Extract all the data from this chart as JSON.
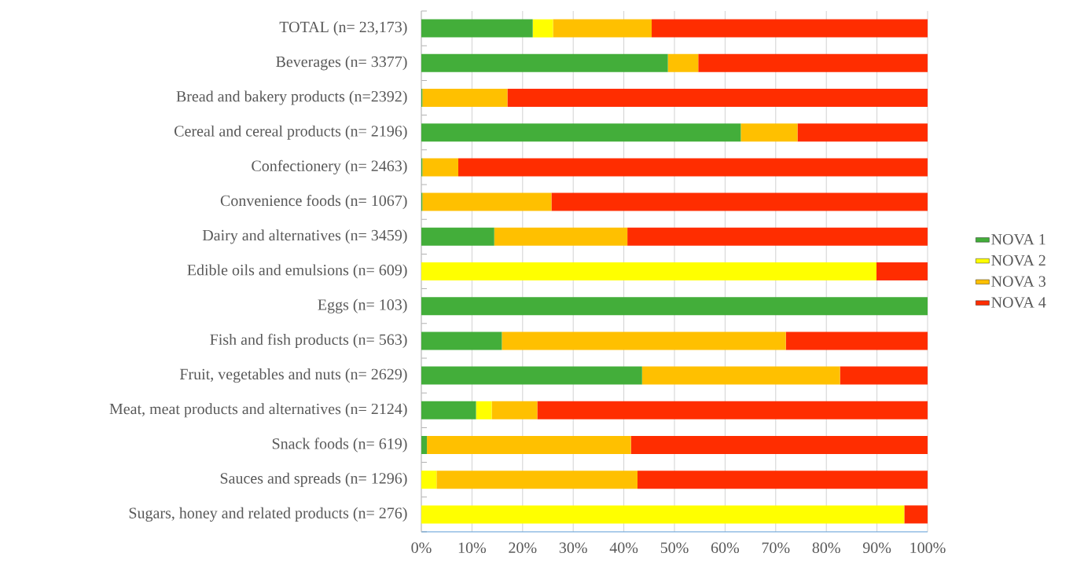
{
  "chart_data": {
    "type": "bar",
    "orientation": "horizontal",
    "stacked": true,
    "categories": [
      "TOTAL (n= 23,173)",
      "Beverages (n= 3377)",
      "Bread and bakery products (n=2392)",
      "Cereal and cereal products (n= 2196)",
      "Confectionery (n= 2463)",
      "Convenience foods (n= 1067)",
      "Dairy and alternatives (n= 3459)",
      "Edible oils and emulsions (n= 609)",
      "Eggs (n= 103)",
      "Fish and fish products (n= 563)",
      "Fruit, vegetables and nuts (n= 2629)",
      "Meat, meat products and alternatives (n= 2124)",
      "Snack foods (n= 619)",
      "Sauces and spreads (n= 1296)",
      "Sugars, honey and related products (n= 276)"
    ],
    "series": [
      {
        "name": "NOVA 1",
        "color": "#43ae3a",
        "values": [
          22.0,
          48.7,
          0.2,
          63.1,
          0.2,
          0.2,
          14.4,
          0,
          100,
          15.9,
          43.6,
          10.8,
          1.1,
          0,
          0
        ]
      },
      {
        "name": "NOVA 2",
        "color": "#ffff00",
        "values": [
          4.0,
          0,
          0,
          0,
          0,
          0,
          0,
          89.9,
          0,
          0,
          0,
          3.1,
          0,
          3.0,
          95.4
        ]
      },
      {
        "name": "NOVA 3",
        "color": "#ffc000",
        "values": [
          19.5,
          6.0,
          16.8,
          11.2,
          7.1,
          25.5,
          26.3,
          0,
          0,
          56.1,
          39.1,
          9.0,
          40.3,
          39.7,
          0
        ]
      },
      {
        "name": "NOVA 4",
        "color": "#ff2d00",
        "values": [
          54.5,
          45.3,
          83.0,
          25.7,
          92.7,
          74.3,
          59.3,
          10.1,
          0,
          28.0,
          17.3,
          77.1,
          58.6,
          57.3,
          4.6
        ]
      }
    ],
    "xlim": [
      0,
      100
    ],
    "xticks": [
      {
        "value": 0,
        "label": "0%"
      },
      {
        "value": 10,
        "label": "10%"
      },
      {
        "value": 20,
        "label": "20%"
      },
      {
        "value": 30,
        "label": "30%"
      },
      {
        "value": 40,
        "label": "40%"
      },
      {
        "value": 50,
        "label": "50%"
      },
      {
        "value": 60,
        "label": "60%"
      },
      {
        "value": 70,
        "label": "70%"
      },
      {
        "value": 80,
        "label": "80%"
      },
      {
        "value": 90,
        "label": "90%"
      },
      {
        "value": 100,
        "label": "100%"
      }
    ],
    "grid": "x",
    "legend": "right"
  }
}
